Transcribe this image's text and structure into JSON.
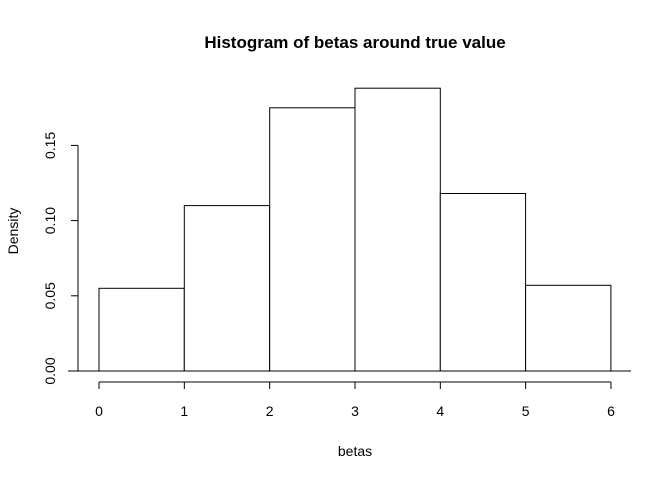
{
  "chart_data": {
    "type": "bar",
    "title": "Histogram of betas around true value",
    "xlabel": "betas",
    "ylabel": "Density",
    "bins": [
      [
        0,
        1
      ],
      [
        1,
        2
      ],
      [
        2,
        3
      ],
      [
        3,
        4
      ],
      [
        4,
        5
      ],
      [
        5,
        6
      ]
    ],
    "values": [
      0.055,
      0.11,
      0.175,
      0.188,
      0.118,
      0.057
    ],
    "xlim": [
      0,
      6
    ],
    "ylim": [
      0,
      0.15
    ],
    "x_ticks": [
      "0",
      "1",
      "2",
      "3",
      "4",
      "5",
      "6"
    ],
    "y_ticks": [
      "0.00",
      "0.05",
      "0.10",
      "0.15"
    ],
    "grid": false
  }
}
